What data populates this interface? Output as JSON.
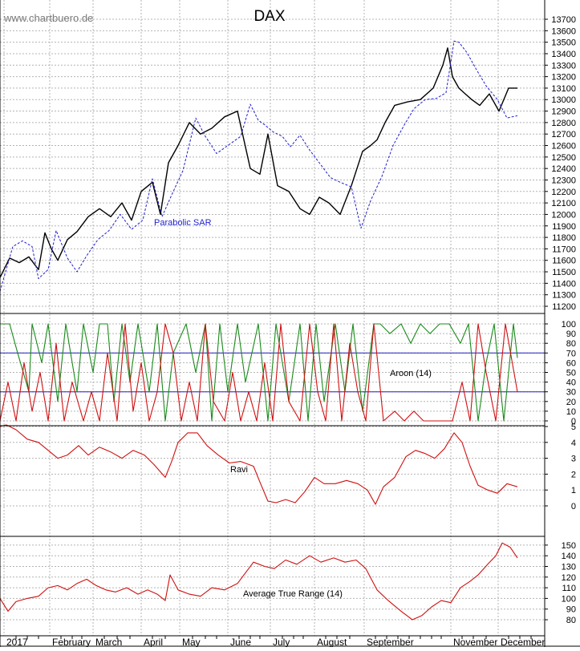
{
  "watermark": "www.chartbuero.de",
  "title": "DAX",
  "colors": {
    "grid": "#b4b4b4",
    "price": "#000000",
    "sar": "#1f1fd0",
    "aroon_up": "#1a8a1a",
    "aroon_down": "#d01010",
    "indicator": "#d01010",
    "ref_line": "#2020c0",
    "text": "#000000",
    "annotation": "#1f1fd0"
  },
  "x_axis": {
    "month_labels": [
      "2017",
      "February",
      "March",
      "April",
      "May",
      "June",
      "July",
      "August",
      "September",
      "November",
      "December"
    ]
  },
  "chart_data": [
    {
      "type": "line",
      "title": "DAX",
      "annotation": "Parabolic SAR",
      "ylim": [
        11100,
        13750
      ],
      "y_ticks": [
        11200,
        11300,
        11400,
        11500,
        11600,
        11700,
        11800,
        11900,
        12000,
        12100,
        12200,
        12300,
        12400,
        12500,
        12600,
        12700,
        12800,
        12900,
        13000,
        13100,
        13200,
        13300,
        13400,
        13500,
        13600,
        13700
      ],
      "series": [
        {
          "style": "price",
          "x": [
            0,
            12,
            24,
            36,
            48,
            56,
            64,
            72,
            84,
            96,
            110,
            124,
            138,
            152,
            164,
            176,
            190,
            200,
            210,
            222,
            236,
            250,
            264,
            280,
            296,
            312,
            324,
            334,
            346,
            360,
            374,
            386,
            398,
            410,
            424,
            438,
            452,
            462,
            470,
            480,
            492,
            508,
            524,
            540,
            552,
            558,
            564,
            572,
            580,
            588,
            598,
            610,
            622,
            634,
            645
          ],
          "values": [
            11450,
            11620,
            11580,
            11630,
            11520,
            11840,
            11700,
            11600,
            11780,
            11850,
            11980,
            12050,
            11980,
            12100,
            11950,
            12200,
            12280,
            12000,
            12450,
            12600,
            12800,
            12700,
            12750,
            12850,
            12900,
            12400,
            12350,
            12700,
            12250,
            12200,
            12050,
            12000,
            12150,
            12100,
            12000,
            12250,
            12550,
            12600,
            12650,
            12800,
            12950,
            12980,
            13000,
            13100,
            13300,
            13450,
            13200,
            13100,
            13050,
            13000,
            12950,
            13050,
            12900,
            13100,
            13100
          ]
        },
        {
          "name": "Parabolic SAR",
          "style": "sar",
          "x": [
            0,
            16,
            28,
            40,
            48,
            60,
            70,
            84,
            96,
            108,
            122,
            136,
            150,
            164,
            178,
            190,
            202,
            214,
            228,
            244,
            256,
            270,
            284,
            300,
            312,
            322,
            330,
            340,
            352,
            362,
            374,
            386,
            398,
            412,
            424,
            438,
            450,
            462,
            476,
            490,
            504,
            516,
            530,
            544,
            556,
            566,
            572,
            582,
            594,
            606,
            620,
            632,
            645
          ],
          "values": [
            11330,
            11720,
            11770,
            11720,
            11440,
            11520,
            11860,
            11620,
            11500,
            11640,
            11780,
            11860,
            12000,
            11870,
            11950,
            12310,
            11980,
            12170,
            12380,
            12840,
            12680,
            12530,
            12600,
            12680,
            12960,
            12820,
            12780,
            12720,
            12680,
            12590,
            12690,
            12560,
            12450,
            12320,
            12280,
            12240,
            11880,
            12120,
            12330,
            12600,
            12780,
            12920,
            13000,
            13010,
            13060,
            13510,
            13500,
            13410,
            13260,
            13120,
            13000,
            12840,
            12860
          ]
        }
      ]
    },
    {
      "type": "line",
      "annotation": "Aroon (14)",
      "ylim": [
        0,
        100
      ],
      "y_ticks": [
        0,
        10,
        20,
        30,
        40,
        50,
        60,
        70,
        80,
        90,
        100
      ],
      "reference_lines": [
        70,
        30
      ],
      "series": [
        {
          "style": "aroon_up",
          "x": [
            0,
            12,
            22,
            36,
            40,
            52,
            60,
            72,
            82,
            96,
            104,
            116,
            124,
            134,
            142,
            152,
            162,
            172,
            186,
            196,
            206,
            216,
            232,
            244,
            256,
            264,
            274,
            284,
            296,
            306,
            322,
            334,
            344,
            360,
            374,
            384,
            394,
            404,
            418,
            430,
            440,
            452,
            466,
            474,
            486,
            500,
            512,
            524,
            536,
            548,
            560,
            574,
            584,
            596,
            606,
            616,
            628,
            640,
            645
          ],
          "values": [
            100,
            100,
            70,
            30,
            100,
            60,
            100,
            20,
            100,
            30,
            100,
            50,
            100,
            100,
            20,
            100,
            40,
            100,
            30,
            100,
            0,
            70,
            100,
            50,
            100,
            0,
            100,
            30,
            100,
            40,
            100,
            0,
            100,
            20,
            100,
            0,
            100,
            20,
            100,
            30,
            100,
            10,
            100,
            100,
            90,
            100,
            80,
            100,
            90,
            100,
            100,
            80,
            100,
            0,
            60,
            100,
            0,
            100,
            65
          ]
        },
        {
          "style": "aroon_down",
          "x": [
            0,
            10,
            20,
            30,
            40,
            50,
            60,
            70,
            80,
            90,
            104,
            114,
            124,
            134,
            146,
            156,
            166,
            176,
            186,
            196,
            206,
            216,
            226,
            236,
            246,
            256,
            266,
            280,
            290,
            300,
            310,
            320,
            330,
            340,
            350,
            360,
            374,
            386,
            396,
            406,
            416,
            426,
            436,
            446,
            456,
            466,
            478,
            492,
            504,
            516,
            528,
            540,
            552,
            564,
            576,
            586,
            596,
            606,
            618,
            630,
            645
          ],
          "values": [
            0,
            40,
            0,
            60,
            10,
            50,
            0,
            80,
            0,
            40,
            0,
            30,
            0,
            70,
            0,
            100,
            10,
            60,
            0,
            30,
            100,
            70,
            0,
            40,
            0,
            100,
            20,
            0,
            50,
            0,
            30,
            0,
            60,
            0,
            100,
            20,
            0,
            100,
            30,
            0,
            100,
            0,
            80,
            30,
            0,
            100,
            0,
            10,
            0,
            10,
            0,
            0,
            0,
            0,
            40,
            0,
            100,
            50,
            0,
            100,
            30
          ]
        }
      ]
    },
    {
      "type": "line",
      "annotation": "Ravi",
      "ylim": [
        -0.5,
        5.5
      ],
      "y_ticks": [
        0,
        1,
        2,
        3,
        4,
        5
      ],
      "series": [
        {
          "style": "indicator",
          "x": [
            0,
            8,
            20,
            34,
            48,
            60,
            72,
            84,
            98,
            110,
            124,
            138,
            152,
            166,
            180,
            192,
            206,
            214,
            222,
            234,
            246,
            258,
            272,
            286,
            300,
            316,
            324,
            334,
            344,
            356,
            368,
            380,
            392,
            404,
            418,
            432,
            446,
            458,
            468,
            478,
            492,
            506,
            518,
            530,
            542,
            554,
            566,
            576,
            586,
            596,
            608,
            620,
            632,
            645
          ],
          "values": [
            5.0,
            5.1,
            4.8,
            4.2,
            4.0,
            3.5,
            3.0,
            3.2,
            3.8,
            3.2,
            3.7,
            3.4,
            3.0,
            3.5,
            3.2,
            2.6,
            1.8,
            2.8,
            4.0,
            4.6,
            4.6,
            3.8,
            3.2,
            2.7,
            2.8,
            2.5,
            1.5,
            0.3,
            0.2,
            0.4,
            0.2,
            0.9,
            1.8,
            1.4,
            1.4,
            1.6,
            1.4,
            1.0,
            0.1,
            1.2,
            1.8,
            3.1,
            3.5,
            3.3,
            3.0,
            3.6,
            4.6,
            4.0,
            2.5,
            1.3,
            1.0,
            0.8,
            1.4,
            1.2
          ]
        }
      ]
    },
    {
      "type": "line",
      "annotation": "Average True Range (14)",
      "ylim": [
        70,
        155
      ],
      "y_ticks": [
        80,
        90,
        100,
        110,
        120,
        130,
        140,
        150
      ],
      "series": [
        {
          "style": "indicator",
          "x": [
            0,
            10,
            20,
            34,
            48,
            60,
            72,
            84,
            96,
            108,
            120,
            132,
            144,
            158,
            172,
            184,
            196,
            206,
            212,
            222,
            236,
            250,
            264,
            280,
            296,
            316,
            330,
            342,
            356,
            370,
            386,
            400,
            416,
            430,
            444,
            456,
            470,
            484,
            500,
            514,
            526,
            538,
            550,
            562,
            574,
            586,
            596,
            608,
            618,
            626,
            636,
            645
          ],
          "values": [
            100,
            88,
            97,
            100,
            102,
            110,
            112,
            108,
            114,
            118,
            112,
            108,
            106,
            110,
            104,
            108,
            104,
            98,
            122,
            108,
            104,
            102,
            110,
            108,
            114,
            134,
            130,
            128,
            136,
            132,
            140,
            134,
            138,
            134,
            136,
            128,
            108,
            98,
            88,
            80,
            84,
            92,
            98,
            96,
            110,
            116,
            122,
            132,
            140,
            152,
            148,
            138
          ]
        }
      ]
    }
  ]
}
